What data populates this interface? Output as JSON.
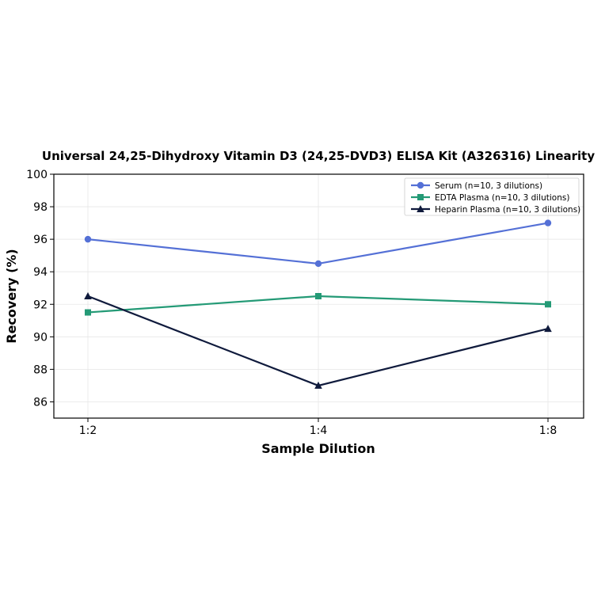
{
  "chart_data": {
    "type": "line",
    "title": "Universal 24,25-Dihydroxy Vitamin D3 (24,25-DVD3) ELISA Kit (A326316) Linearity",
    "xlabel": "Sample Dilution",
    "ylabel": "Recovery (%)",
    "categories": [
      "1:2",
      "1:4",
      "1:8"
    ],
    "ylim": [
      85,
      100
    ],
    "yticks": [
      86,
      88,
      90,
      92,
      94,
      96,
      98,
      100
    ],
    "grid": true,
    "legend_position": "top-right",
    "series": [
      {
        "name": "Serum (n=10, 3 dilutions)",
        "values": [
          96.0,
          94.5,
          97.0
        ],
        "color": "#5470d6",
        "marker": "circle"
      },
      {
        "name": "EDTA Plasma (n=10, 3 dilutions)",
        "values": [
          91.5,
          92.5,
          92.0
        ],
        "color": "#249a76",
        "marker": "square"
      },
      {
        "name": "Heparin Plasma (n=10, 3 dilutions)",
        "values": [
          92.5,
          87.0,
          90.5
        ],
        "color": "#0f1a3c",
        "marker": "triangle"
      }
    ]
  }
}
